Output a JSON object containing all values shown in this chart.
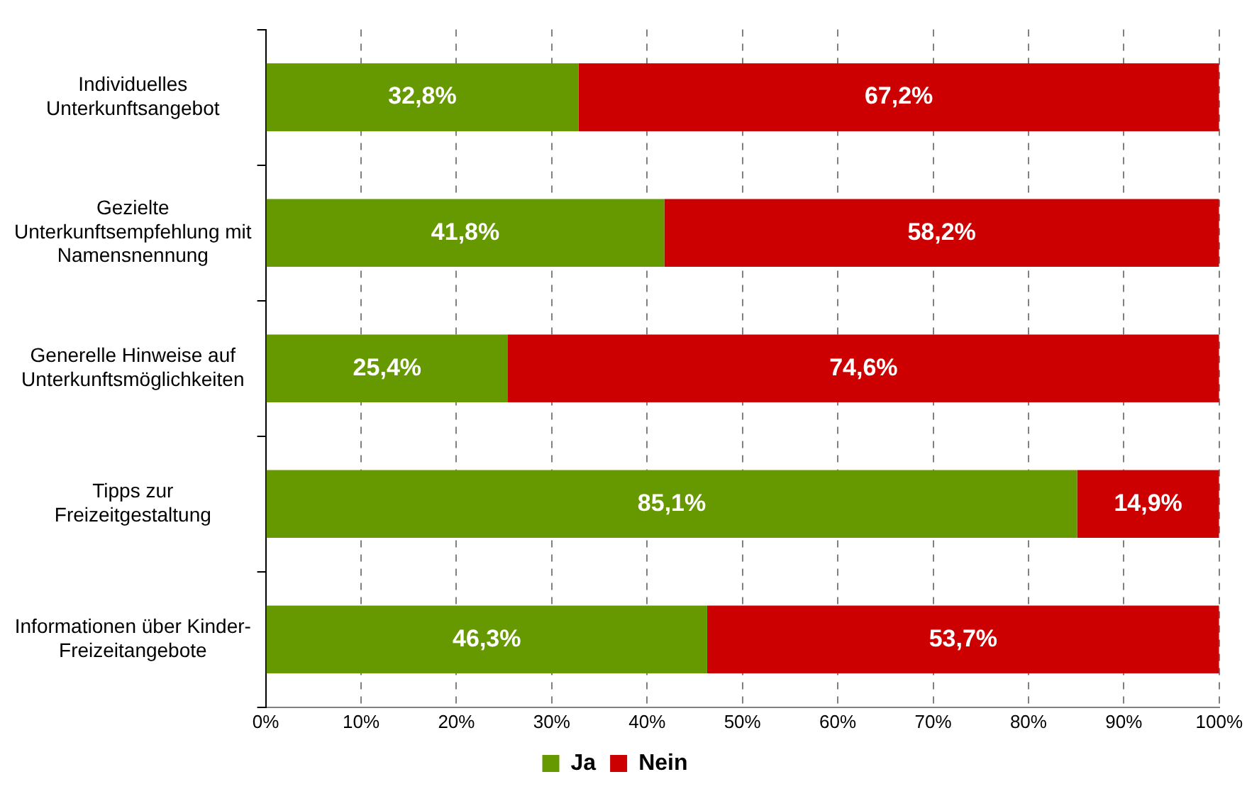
{
  "chart_data": {
    "type": "bar",
    "orientation": "horizontal",
    "stacked": true,
    "categories": [
      "Individuelles Unterkunftsangebot",
      "Gezielte Unterkunftsempfehlung mit Namensnennung",
      "Generelle Hinweise auf Unterkunftsmöglichkeiten",
      "Tipps zur Freizeitgestaltung",
      "Informationen über Kinder-Freizeitangebote"
    ],
    "series": [
      {
        "name": "Ja",
        "color": "#669900",
        "values": [
          32.8,
          41.8,
          25.4,
          85.1,
          46.3
        ],
        "value_labels": [
          "32,8%",
          "41,8%",
          "25,4%",
          "85,1%",
          "46,3%"
        ]
      },
      {
        "name": "Nein",
        "color": "#cc0000",
        "values": [
          67.2,
          58.2,
          74.6,
          14.9,
          53.7
        ],
        "value_labels": [
          "67,2%",
          "58,2%",
          "74,6%",
          "14,9%",
          "53,7%"
        ]
      }
    ],
    "xlim": [
      0,
      100
    ],
    "xticks": [
      {
        "value": 0,
        "label": "0%"
      },
      {
        "value": 10,
        "label": "10%"
      },
      {
        "value": 20,
        "label": "20%"
      },
      {
        "value": 30,
        "label": "30%"
      },
      {
        "value": 40,
        "label": "40%"
      },
      {
        "value": 50,
        "label": "50%"
      },
      {
        "value": 60,
        "label": "60%"
      },
      {
        "value": 70,
        "label": "70%"
      },
      {
        "value": 80,
        "label": "80%"
      },
      {
        "value": 90,
        "label": "90%"
      },
      {
        "value": 100,
        "label": "100%"
      }
    ],
    "grid": "x",
    "legend": "bottom"
  }
}
